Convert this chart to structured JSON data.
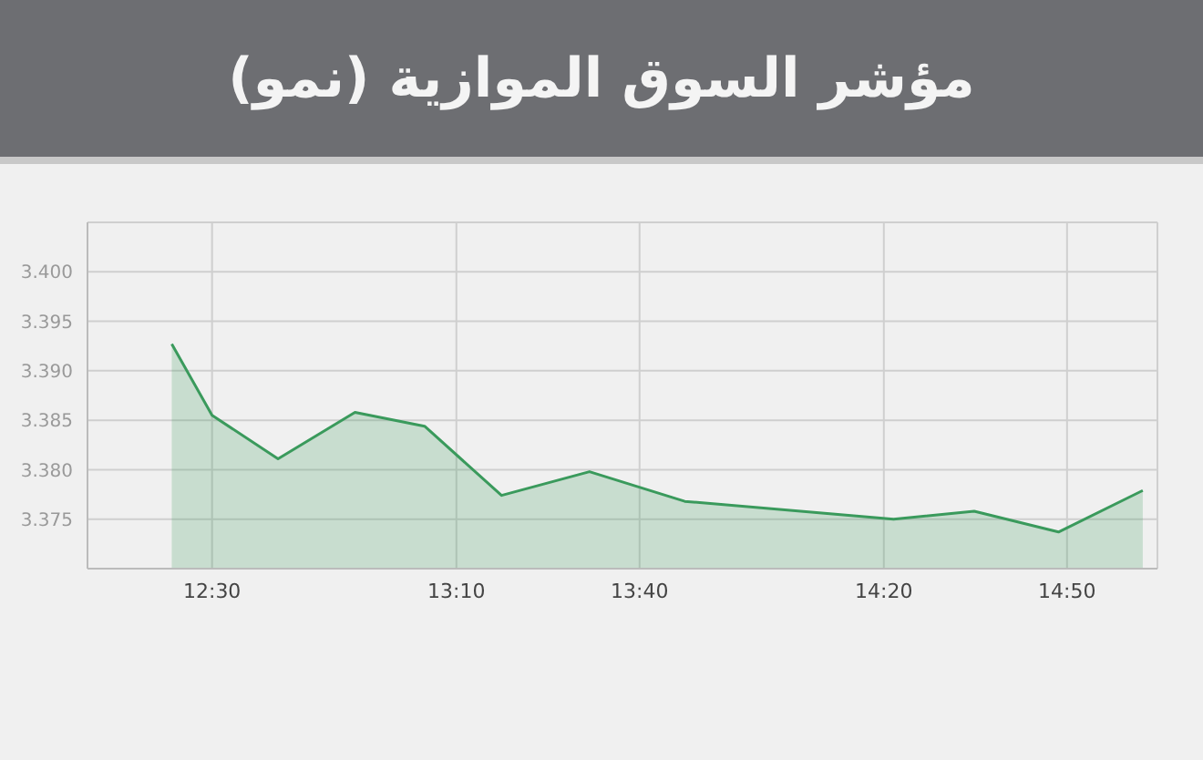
{
  "chart_data": {
    "type": "area",
    "title": "مؤشر السوق الموازية (نمو)",
    "x": [
      12.39,
      12.5,
      12.68,
      12.89,
      13.08,
      13.29,
      13.53,
      13.79,
      14.36,
      14.58,
      14.81,
      15.04
    ],
    "series": [
      {
        "color": "#3a9a5c",
        "values": [
          3.3927,
          3.3855,
          3.3811,
          3.3858,
          3.3844,
          3.3774,
          3.3798,
          3.3768,
          3.375,
          3.3758,
          3.3737,
          3.3779
        ]
      }
    ],
    "xlim": [
      12.16,
      15.08
    ],
    "xticks": [
      {
        "value": 12.5,
        "label": "12:30"
      },
      {
        "value": 13.1667,
        "label": "13:10"
      },
      {
        "value": 13.6667,
        "label": "13:40"
      },
      {
        "value": 14.3333,
        "label": "14:20"
      },
      {
        "value": 14.8333,
        "label": "14:50"
      }
    ],
    "ylim": [
      3.37,
      3.405
    ],
    "yticks": [
      {
        "value": 3.375,
        "label": "3.375"
      },
      {
        "value": 3.38,
        "label": "3.380"
      },
      {
        "value": 3.385,
        "label": "3.385"
      },
      {
        "value": 3.39,
        "label": "3.390"
      },
      {
        "value": 3.395,
        "label": "3.395"
      },
      {
        "value": 3.4,
        "label": "3.400"
      },
      {
        "value": 3.405,
        "label": null
      }
    ],
    "grid": true,
    "marker": "none",
    "line_style": "solid"
  }
}
